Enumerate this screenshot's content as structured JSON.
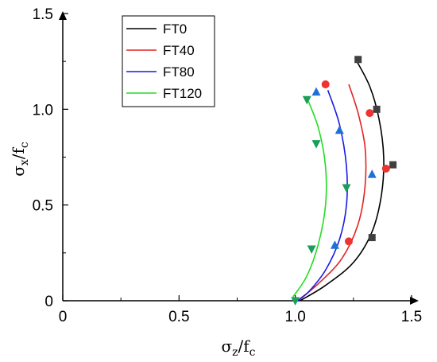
{
  "chart_data": {
    "type": "scatter",
    "title": "",
    "xlabel": {
      "main": "σ",
      "sub1": "z",
      "slash": "/f",
      "sub2": "c"
    },
    "ylabel": {
      "main": "σ",
      "sub1": "x",
      "slash": "/f",
      "sub2": "c"
    },
    "xlim": [
      0,
      1.5
    ],
    "ylim": [
      0,
      1.5
    ],
    "xticks": [
      {
        "value": 0,
        "label": "0"
      },
      {
        "value": 0.5,
        "label": "0.5"
      },
      {
        "value": 1.0,
        "label": "1.0"
      },
      {
        "value": 1.5,
        "label": "1.5"
      }
    ],
    "yticks": [
      {
        "value": 0,
        "label": "0"
      },
      {
        "value": 0.5,
        "label": "0.5"
      },
      {
        "value": 1.0,
        "label": "1.0"
      },
      {
        "value": 1.5,
        "label": "1.5"
      }
    ],
    "grid": false,
    "legend_position": "top-left",
    "series": [
      {
        "name": "FT0",
        "color": "#000000",
        "marker": "square",
        "marker_color": "#404040",
        "points": [
          {
            "x": 1.27,
            "y": 1.26
          },
          {
            "x": 1.35,
            "y": 1.0
          },
          {
            "x": 1.42,
            "y": 0.71
          },
          {
            "x": 1.33,
            "y": 0.33
          }
        ],
        "curve": [
          {
            "x": 1.26,
            "y": 1.26
          },
          {
            "x": 1.32,
            "y": 1.12
          },
          {
            "x": 1.36,
            "y": 0.95
          },
          {
            "x": 1.38,
            "y": 0.75
          },
          {
            "x": 1.37,
            "y": 0.55
          },
          {
            "x": 1.33,
            "y": 0.36
          },
          {
            "x": 1.25,
            "y": 0.2
          },
          {
            "x": 1.13,
            "y": 0.08
          },
          {
            "x": 1.02,
            "y": 0.0
          }
        ]
      },
      {
        "name": "FT40",
        "color": "#e32222",
        "marker": "circle",
        "marker_color": "#ee3333",
        "points": [
          {
            "x": 1.13,
            "y": 1.13
          },
          {
            "x": 1.32,
            "y": 0.98
          },
          {
            "x": 1.39,
            "y": 0.69
          },
          {
            "x": 1.23,
            "y": 0.31
          }
        ],
        "curve": [
          {
            "x": 1.23,
            "y": 1.13
          },
          {
            "x": 1.27,
            "y": 0.98
          },
          {
            "x": 1.3,
            "y": 0.8
          },
          {
            "x": 1.3,
            "y": 0.6
          },
          {
            "x": 1.27,
            "y": 0.4
          },
          {
            "x": 1.2,
            "y": 0.22
          },
          {
            "x": 1.1,
            "y": 0.09
          },
          {
            "x": 1.02,
            "y": 0.01
          }
        ]
      },
      {
        "name": "FT80",
        "color": "#1a1ae0",
        "marker": "triangle-up",
        "marker_color": "#1f6fd6",
        "points": [
          {
            "x": 1.09,
            "y": 1.09
          },
          {
            "x": 1.19,
            "y": 0.89
          },
          {
            "x": 1.33,
            "y": 0.66
          },
          {
            "x": 1.17,
            "y": 0.29
          }
        ],
        "curve": [
          {
            "x": 1.14,
            "y": 1.1
          },
          {
            "x": 1.19,
            "y": 0.92
          },
          {
            "x": 1.22,
            "y": 0.7
          },
          {
            "x": 1.22,
            "y": 0.5
          },
          {
            "x": 1.19,
            "y": 0.32
          },
          {
            "x": 1.13,
            "y": 0.16
          },
          {
            "x": 1.06,
            "y": 0.05
          },
          {
            "x": 1.01,
            "y": 0.0
          }
        ]
      },
      {
        "name": "FT120",
        "color": "#22dd22",
        "marker": "triangle-down",
        "marker_color": "#1a9e5a",
        "points": [
          {
            "x": 1.05,
            "y": 1.05
          },
          {
            "x": 1.09,
            "y": 0.82
          },
          {
            "x": 1.22,
            "y": 0.59
          },
          {
            "x": 1.07,
            "y": 0.27
          },
          {
            "x": 1.0,
            "y": 0.0
          }
        ],
        "curve": [
          {
            "x": 1.05,
            "y": 1.06
          },
          {
            "x": 1.1,
            "y": 0.9
          },
          {
            "x": 1.13,
            "y": 0.7
          },
          {
            "x": 1.13,
            "y": 0.5
          },
          {
            "x": 1.1,
            "y": 0.3
          },
          {
            "x": 1.05,
            "y": 0.13
          },
          {
            "x": 0.99,
            "y": 0.02
          }
        ]
      }
    ]
  }
}
